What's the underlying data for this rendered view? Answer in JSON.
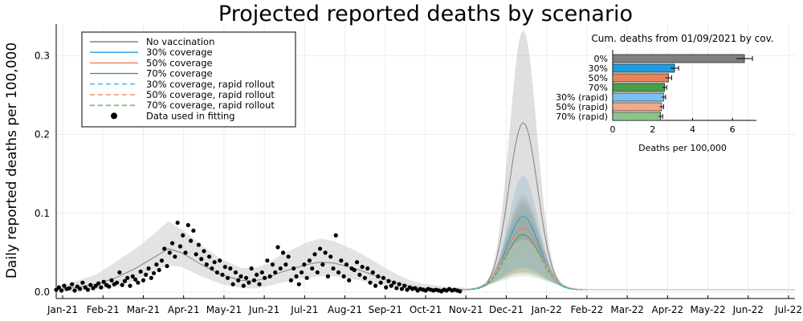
{
  "chart_data": [
    {
      "type": "line",
      "title": "Projected reported deaths by scenario",
      "ylabel": "Daily reported deaths per 100,000",
      "xlabel": "",
      "x_ticks": [
        "Jan-21",
        "Feb-21",
        "Mar-21",
        "Apr-21",
        "May-21",
        "Jun-21",
        "Jul-21",
        "Aug-21",
        "Sep-21",
        "Oct-21",
        "Nov-21",
        "Dec-21",
        "Jan-22",
        "Feb-22",
        "Mar-22",
        "Apr-22",
        "May-22",
        "Jun-22",
        "Jul-22"
      ],
      "y_ticks": [
        "0.0",
        "0.1",
        "0.2",
        "0.3"
      ],
      "ylim": [
        0,
        0.34
      ],
      "grid": true,
      "legend_position": "top-left",
      "legend": [
        {
          "label": "No vaccination",
          "color": "#808080",
          "style": "solid"
        },
        {
          "label": "30% coverage",
          "color": "#1f9be0",
          "style": "solid"
        },
        {
          "label": "50% coverage",
          "color": "#e8845a",
          "style": "solid"
        },
        {
          "label": "70% coverage",
          "color": "#4a9e4a",
          "style": "solid"
        },
        {
          "label": "30% coverage, rapid rollout",
          "color": "#79c1f0",
          "style": "dashed"
        },
        {
          "label": "50% coverage, rapid rollout",
          "color": "#f0a98a",
          "style": "dashed"
        },
        {
          "label": "70% coverage, rapid rollout",
          "color": "#8cc48c",
          "style": "dashed"
        },
        {
          "label": "Data used in fitting",
          "color": "#000000",
          "style": "marker"
        }
      ],
      "fit_line": {
        "x": [
          0,
          15,
          30,
          45,
          60,
          75,
          85,
          95,
          110,
          125,
          140,
          150,
          160,
          170,
          180,
          190,
          200,
          210,
          220,
          230,
          240,
          250,
          260,
          270,
          280,
          290,
          300,
          310
        ],
        "y": [
          0.003,
          0.006,
          0.01,
          0.018,
          0.03,
          0.045,
          0.055,
          0.05,
          0.035,
          0.022,
          0.015,
          0.014,
          0.018,
          0.025,
          0.03,
          0.035,
          0.038,
          0.037,
          0.033,
          0.028,
          0.022,
          0.016,
          0.011,
          0.007,
          0.005,
          0.004,
          0.003,
          0.003
        ]
      },
      "fit_band_width": [
        0.004,
        0.008,
        0.012,
        0.02,
        0.025,
        0.03,
        0.035,
        0.03,
        0.025,
        0.02,
        0.016,
        0.016,
        0.018,
        0.022,
        0.025,
        0.028,
        0.03,
        0.028,
        0.025,
        0.022,
        0.018,
        0.014,
        0.01,
        0.007,
        0.005,
        0.004,
        0.003,
        0.003
      ],
      "projection_lines": [
        {
          "name": "No vaccination",
          "color": "#808080",
          "dash": false,
          "peak": 0.212,
          "width": 11,
          "upper": 0.33
        },
        {
          "name": "30% coverage",
          "color": "#1f9be0",
          "dash": false,
          "peak": 0.093,
          "width": 12,
          "upper": 0.145
        },
        {
          "name": "50% coverage",
          "color": "#e8845a",
          "dash": false,
          "peak": 0.078,
          "width": 13,
          "upper": 0.12
        },
        {
          "name": "70% coverage",
          "color": "#4a9e4a",
          "dash": false,
          "peak": 0.07,
          "width": 13,
          "upper": 0.11
        },
        {
          "name": "30% coverage, rapid rollout",
          "color": "#79c1f0",
          "dash": true,
          "peak": 0.075,
          "width": 13,
          "upper": 0.115
        },
        {
          "name": "50% coverage, rapid rollout",
          "color": "#f0a98a",
          "dash": true,
          "peak": 0.062,
          "width": 14,
          "upper": 0.1
        },
        {
          "name": "70% coverage, rapid rollout",
          "color": "#8cc48c",
          "dash": true,
          "peak": 0.055,
          "width": 14,
          "upper": 0.09
        }
      ],
      "projection_peak_day": 354,
      "scatter": {
        "x": [
          0,
          2,
          4,
          6,
          8,
          10,
          12,
          14,
          16,
          18,
          20,
          22,
          24,
          26,
          28,
          30,
          32,
          34,
          36,
          38,
          40,
          42,
          44,
          46,
          48,
          50,
          52,
          54,
          56,
          58,
          60,
          62,
          64,
          66,
          68,
          70,
          72,
          74,
          76,
          78,
          80,
          82,
          84,
          86,
          88,
          90,
          92,
          94,
          96,
          98,
          100,
          102,
          104,
          106,
          108,
          110,
          112,
          114,
          116,
          118,
          120,
          122,
          124,
          126,
          128,
          130,
          132,
          134,
          136,
          138,
          140,
          142,
          144,
          146,
          148,
          150,
          152,
          154,
          156,
          158,
          160,
          162,
          164,
          166,
          168,
          170,
          172,
          174,
          176,
          178,
          180,
          182,
          184,
          186,
          188,
          190,
          192,
          194,
          196,
          198,
          200,
          202,
          204,
          206,
          208,
          210,
          212,
          214,
          216,
          218,
          220,
          222,
          224,
          226,
          228,
          230,
          232,
          234,
          236,
          238,
          240,
          242,
          244,
          246,
          248,
          250,
          252,
          254,
          256,
          258,
          260,
          262,
          264,
          266,
          268,
          270,
          272,
          274,
          276,
          278,
          280,
          282,
          284,
          286,
          288,
          290,
          292,
          294,
          296,
          298,
          300,
          302,
          304,
          306
        ],
        "y": [
          0.003,
          0.006,
          0.002,
          0.008,
          0.004,
          0.005,
          0.01,
          0.002,
          0.007,
          0.004,
          0.012,
          0.006,
          0.003,
          0.009,
          0.005,
          0.008,
          0.011,
          0.006,
          0.013,
          0.009,
          0.007,
          0.015,
          0.01,
          0.012,
          0.025,
          0.009,
          0.014,
          0.018,
          0.008,
          0.02,
          0.016,
          0.012,
          0.026,
          0.015,
          0.022,
          0.03,
          0.018,
          0.024,
          0.035,
          0.028,
          0.04,
          0.055,
          0.033,
          0.05,
          0.062,
          0.045,
          0.088,
          0.058,
          0.072,
          0.05,
          0.085,
          0.065,
          0.078,
          0.048,
          0.06,
          0.042,
          0.052,
          0.035,
          0.045,
          0.03,
          0.038,
          0.025,
          0.04,
          0.022,
          0.032,
          0.018,
          0.03,
          0.01,
          0.025,
          0.015,
          0.02,
          0.008,
          0.018,
          0.012,
          0.03,
          0.015,
          0.022,
          0.01,
          0.025,
          0.018,
          0.04,
          0.02,
          0.035,
          0.025,
          0.057,
          0.03,
          0.05,
          0.035,
          0.045,
          0.015,
          0.03,
          0.02,
          0.01,
          0.025,
          0.035,
          0.018,
          0.04,
          0.03,
          0.048,
          0.025,
          0.055,
          0.035,
          0.05,
          0.02,
          0.045,
          0.03,
          0.072,
          0.025,
          0.04,
          0.02,
          0.035,
          0.015,
          0.03,
          0.028,
          0.038,
          0.022,
          0.032,
          0.018,
          0.03,
          0.012,
          0.025,
          0.008,
          0.02,
          0.012,
          0.018,
          0.006,
          0.014,
          0.008,
          0.012,
          0.005,
          0.01,
          0.004,
          0.008,
          0.003,
          0.006,
          0.004,
          0.005,
          0.002,
          0.004,
          0.003,
          0.002,
          0.004,
          0.003,
          0.002,
          0.003,
          0.002,
          0.001,
          0.003,
          0.002,
          0.004,
          0.002,
          0.003,
          0.002,
          0.001
        ]
      }
    },
    {
      "type": "bar",
      "orientation": "horizontal",
      "title": "Cum. deaths from 01/09/2021 by cov.",
      "xlabel": "Deaths per 100,000",
      "categories": [
        "0%",
        "30%",
        "50%",
        "70%",
        "30% (rapid)",
        "50% (rapid)",
        "70% (rapid)"
      ],
      "values": [
        6.6,
        3.1,
        2.8,
        2.6,
        2.55,
        2.45,
        2.4
      ],
      "errors": [
        0.4,
        0.2,
        0.15,
        0.1,
        0.1,
        0.1,
        0.1
      ],
      "colors": [
        "#808080",
        "#1f9be0",
        "#e8845a",
        "#4a9e4a",
        "#79c1f0",
        "#f0a98a",
        "#8cc48c"
      ],
      "x_ticks": [
        "0",
        "2",
        "4",
        "6"
      ],
      "xlim": [
        0,
        7.2
      ]
    }
  ]
}
